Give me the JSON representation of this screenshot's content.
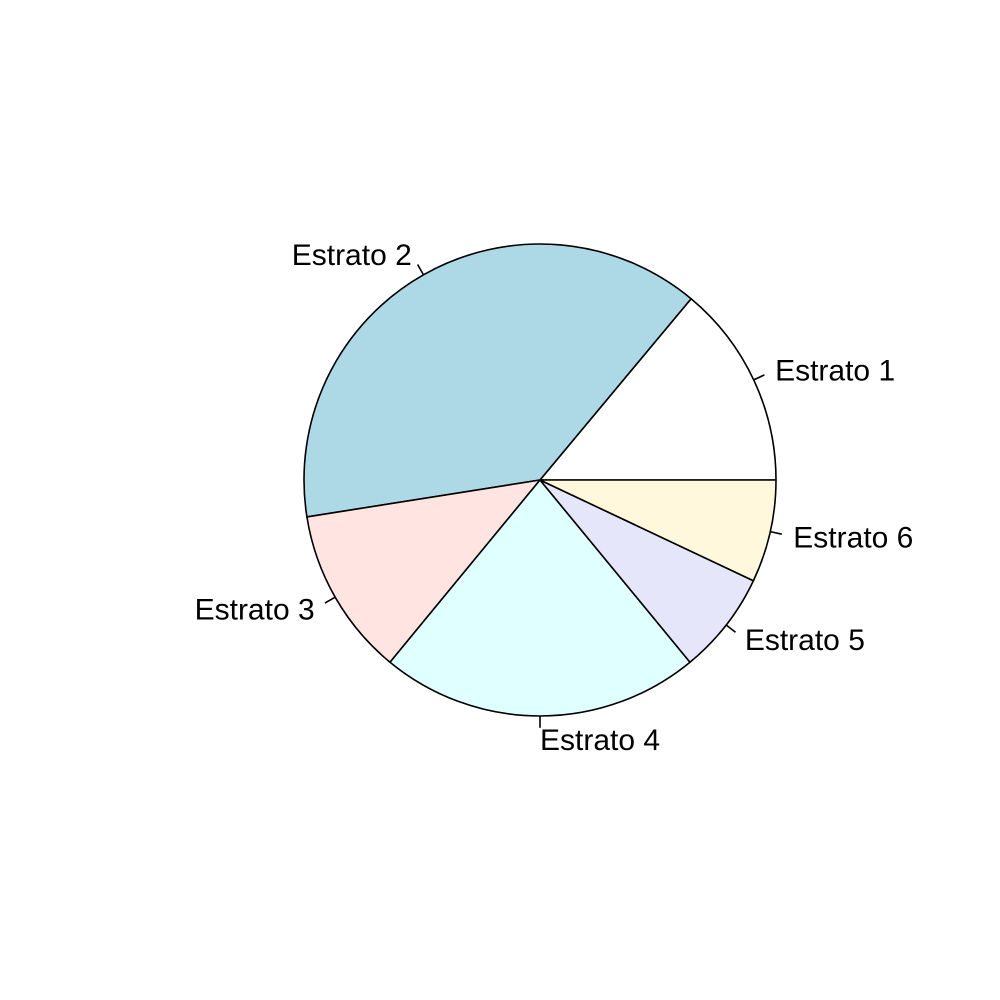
{
  "chart_data": {
    "type": "pie",
    "title": "",
    "labels": [
      "Estrato 1",
      "Estrato 2",
      "Estrato 3",
      "Estrato 4",
      "Estrato 5",
      "Estrato 6"
    ],
    "values": [
      14.5,
      40.1,
      12.0,
      22.8,
      7.3,
      7.3
    ],
    "colors": [
      "#FFFFFF",
      "#ADD8E6",
      "#FFE4E1",
      "#E0FFFF",
      "#E6E6FA",
      "#FFF8DC"
    ],
    "start_angle_deg": 0,
    "direction": "counterclockwise",
    "legend": "none"
  }
}
